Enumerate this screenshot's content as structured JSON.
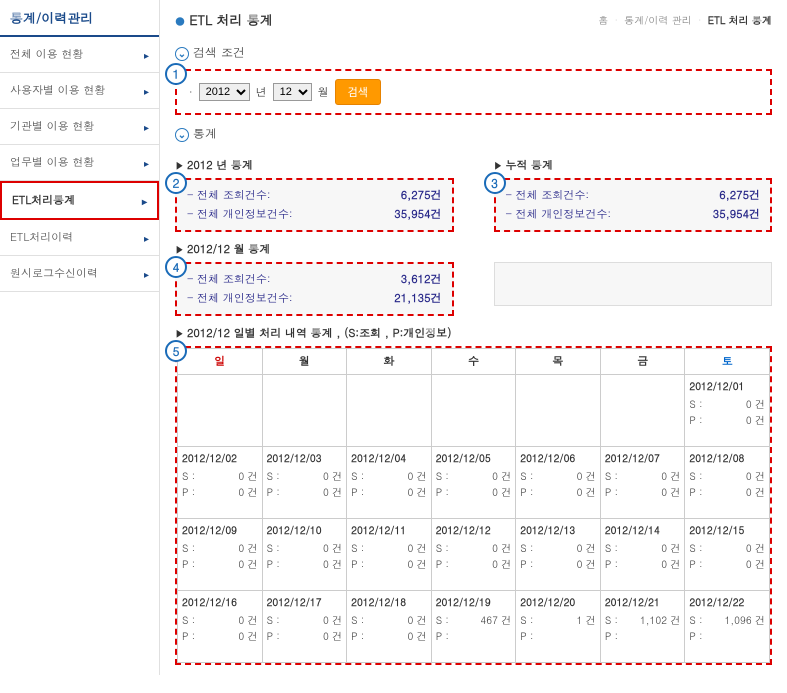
{
  "sidebar": {
    "title": "통계/이력관리",
    "items": [
      {
        "label": "전체 이용 현황"
      },
      {
        "label": "사용자별 이용 현황"
      },
      {
        "label": "기관별 이용 현황"
      },
      {
        "label": "업무별 이용 현황"
      },
      {
        "label": "ETL처리통계"
      },
      {
        "label": "ETL처리이력"
      },
      {
        "label": "원시로그수신이력"
      }
    ]
  },
  "breadcrumb": {
    "home": "홈",
    "mid": "통계/이력 관리",
    "current": "ETL 처리 통계"
  },
  "page_title": "ETL 처리 통계",
  "search": {
    "header": "검색 조건",
    "year": "2012",
    "year_label": "년",
    "month": "12",
    "month_label": "월",
    "button": "검색"
  },
  "stats": {
    "header": "통계",
    "year_title": "2012 년 통계",
    "cum_title": "누적 통계",
    "month_title": "2012/12 월 통계",
    "year_rows": [
      {
        "label": "전체 조회건수:",
        "value": "6,275건"
      },
      {
        "label": "전체 개인정보건수:",
        "value": "35,954건"
      }
    ],
    "cum_rows": [
      {
        "label": "전체 조회건수:",
        "value": "6,275건"
      },
      {
        "label": "전체 개인정보건수:",
        "value": "35,954건"
      }
    ],
    "month_rows": [
      {
        "label": "전체 조회건수:",
        "value": "3,612건"
      },
      {
        "label": "전체 개인정보건수:",
        "value": "21,135건"
      }
    ]
  },
  "calendar": {
    "title": "2012/12 일별 처리 내역 통계 , (S:조회 , P:개인정보)",
    "headers": [
      "일",
      "월",
      "화",
      "수",
      "목",
      "금",
      "토"
    ],
    "weeks": [
      [
        null,
        null,
        null,
        null,
        null,
        null,
        {
          "date": "2012/12/01",
          "s": "0 건",
          "p": "0 건"
        }
      ],
      [
        {
          "date": "2012/12/02",
          "s": "0 건",
          "p": "0 건"
        },
        {
          "date": "2012/12/03",
          "s": "0 건",
          "p": "0 건"
        },
        {
          "date": "2012/12/04",
          "s": "0 건",
          "p": "0 건"
        },
        {
          "date": "2012/12/05",
          "s": "0 건",
          "p": "0 건"
        },
        {
          "date": "2012/12/06",
          "s": "0 건",
          "p": "0 건"
        },
        {
          "date": "2012/12/07",
          "s": "0 건",
          "p": "0 건"
        },
        {
          "date": "2012/12/08",
          "s": "0 건",
          "p": "0 건"
        }
      ],
      [
        {
          "date": "2012/12/09",
          "s": "0 건",
          "p": "0 건"
        },
        {
          "date": "2012/12/10",
          "s": "0 건",
          "p": "0 건"
        },
        {
          "date": "2012/12/11",
          "s": "0 건",
          "p": "0 건"
        },
        {
          "date": "2012/12/12",
          "s": "0 건",
          "p": "0 건"
        },
        {
          "date": "2012/12/13",
          "s": "0 건",
          "p": "0 건"
        },
        {
          "date": "2012/12/14",
          "s": "0 건",
          "p": "0 건"
        },
        {
          "date": "2012/12/15",
          "s": "0 건",
          "p": "0 건"
        }
      ],
      [
        {
          "date": "2012/12/16",
          "s": "0 건",
          "p": "0 건"
        },
        {
          "date": "2012/12/17",
          "s": "0 건",
          "p": "0 건"
        },
        {
          "date": "2012/12/18",
          "s": "0 건",
          "p": "0 건"
        },
        {
          "date": "2012/12/19",
          "s": "467 건",
          "p": ""
        },
        {
          "date": "2012/12/20",
          "s": "1 건",
          "p": ""
        },
        {
          "date": "2012/12/21",
          "s": "1,102 건",
          "p": ""
        },
        {
          "date": "2012/12/22",
          "s": "1,096 건",
          "p": ""
        }
      ]
    ]
  }
}
